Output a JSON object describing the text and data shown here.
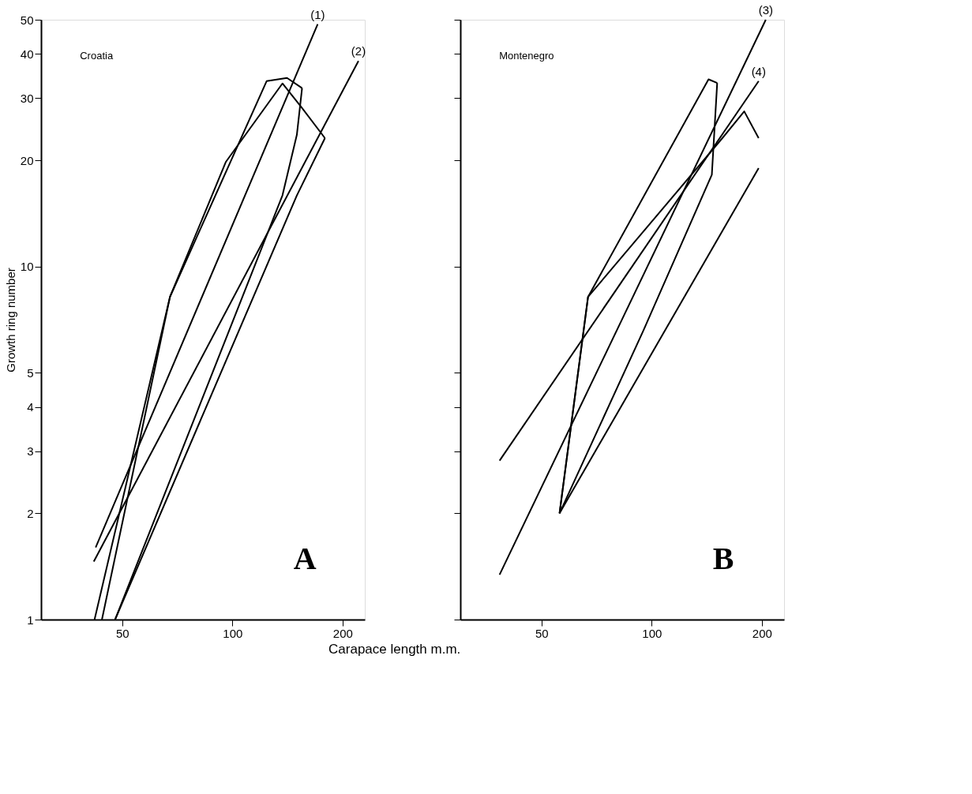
{
  "chart_data": [
    {
      "type": "line",
      "xlabel": "Carapace length m.m.",
      "ylabel": "Growth ring number",
      "log": "xy",
      "grid": false,
      "xlim": [
        30,
        230
      ],
      "ylim": [
        1,
        50
      ],
      "xticks": [
        50,
        100,
        200
      ],
      "yticks": [
        1,
        2,
        3,
        4,
        5,
        10,
        20,
        30,
        40,
        50
      ],
      "annotations": [
        "Croatia",
        "A"
      ],
      "series": [
        {
          "color": "#000000",
          "x": [
            42,
            67.5,
            124,
            141,
            155
          ],
          "values": [
            1,
            8.2,
            33.5,
            34.2,
            32
          ]
        },
        {
          "color": "#000000",
          "x": [
            47.8,
            137,
            150,
            155
          ],
          "values": [
            1,
            15.9,
            23.6,
            32
          ]
        },
        {
          "color": "#000000",
          "x": [
            44,
            67.5,
            96,
            137,
            155,
            179
          ],
          "values": [
            1,
            8.2,
            19.8,
            33,
            28.1,
            23.1
          ]
        },
        {
          "color": "#000000",
          "x": [
            47.8,
            150,
            179
          ],
          "values": [
            1,
            15.9,
            23.1
          ]
        },
        {
          "name": "(1)",
          "color": "#000000",
          "x": [
            42.3,
            171
          ],
          "values": [
            1.6,
            48.6
          ]
        },
        {
          "name": "(2)",
          "color": "#000000",
          "x": [
            41.8,
            221
          ],
          "values": [
            1.46,
            38.2
          ]
        }
      ]
    },
    {
      "type": "line",
      "log": "xy",
      "grid": false,
      "tick_labels": "x",
      "xlim": [
        30,
        230
      ],
      "ylim": [
        1,
        50
      ],
      "xticks": [
        50,
        100,
        200
      ],
      "yticks": [
        1,
        2,
        3,
        4,
        5,
        10,
        20,
        30,
        40,
        50
      ],
      "annotations": [
        "Montenegro",
        "B"
      ],
      "series": [
        {
          "color": "#000000",
          "x": [
            56,
            67,
            143,
            151
          ],
          "values": [
            2.0,
            8.2,
            33.9,
            33.1
          ]
        },
        {
          "color": "#000000",
          "x": [
            56,
            95,
            146,
            151
          ],
          "values": [
            2.0,
            6.6,
            18.2,
            33.1
          ]
        },
        {
          "color": "#000000",
          "x": [
            56,
            67,
            156,
            179,
            196
          ],
          "values": [
            2.0,
            8.2,
            23.1,
            27.5,
            23.1
          ]
        },
        {
          "color": "#000000",
          "x": [
            56,
            196
          ],
          "values": [
            2.0,
            19.0
          ]
        },
        {
          "name": "(3)",
          "color": "#000000",
          "x": [
            38.4,
            205
          ],
          "values": [
            1.34,
            50
          ]
        },
        {
          "name": "(4)",
          "color": "#000000",
          "x": [
            38.4,
            196
          ],
          "values": [
            2.82,
            33.5
          ]
        }
      ]
    }
  ]
}
